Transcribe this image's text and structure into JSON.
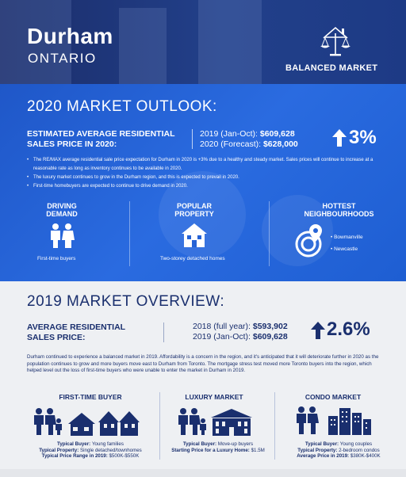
{
  "header": {
    "city": "Durham",
    "province": "ONTARIO",
    "badge": "BALANCED MARKET"
  },
  "outlook": {
    "title": "2020 MARKET OUTLOOK:",
    "label_line1": "ESTIMATED AVERAGE RESIDENTIAL",
    "label_line2": "SALES PRICE IN 2020:",
    "row1_label": "2019 (Jan-Oct): ",
    "row1_value": "$609,628",
    "row2_label": "2020 (Forecast): ",
    "row2_value": "$628,000",
    "change": "3%",
    "bullets": [
      "The RE/MAX average residential sale price expectation for Durham in 2020 is +3% due to a healthy and steady market. Sales prices will continue to increase at a reasonable rate as long as inventory continues to be available in 2020.",
      "The luxury market continues to grow in the Durham region, and this is expected to prevail in 2020.",
      "First-time homebuyers are expected to continue to drive demand in 2020."
    ],
    "driving_h1": "DRIVING",
    "driving_h2": "DEMAND",
    "driving_text": "First-time buyers",
    "popular_h1": "POPULAR",
    "popular_h2": "PROPERTY",
    "popular_text": "Two-storey detached homes",
    "hottest_h1": "HOTTEST",
    "hottest_h2": "NEIGHBOURHOODS",
    "neighbourhoods": [
      "Bowmanville",
      "Newcastle"
    ]
  },
  "overview": {
    "title": "2019 MARKET OVERVIEW:",
    "label_line1": "AVERAGE RESIDENTIAL",
    "label_line2": "SALES PRICE:",
    "row1_label": "2018 (full year): ",
    "row1_value": "$593,902",
    "row2_label": "2019 (Jan-Oct): ",
    "row2_value": "$609,628",
    "change": "2.6%",
    "paragraph": "Durham continued to experience a balanced market in 2019. Affordability is a concern in the region, and it's anticipated that it will deteriorate further in 2020 as the population continues to grow and more buyers move east to Durham from Toronto. The mortgage stress test moved more Toronto buyers into the region, which helped level out the loss of first-time buyers who were unable to enter the market in Durham in 2019."
  },
  "markets": [
    {
      "title": "FIRST-TIME BUYER",
      "l1": "Typical Buyer: ",
      "v1": "Young families",
      "l2": "Typical Property: ",
      "v2": "Single detached/townhomes",
      "l3": "Typical Price Range in 2019: ",
      "v3": "$500K-$550K"
    },
    {
      "title": "LUXURY MARKET",
      "l1": "Typical Buyer: ",
      "v1": "Move-up buyers",
      "l2": "Starting Price for a Luxury Home: ",
      "v2": "$1.5M"
    },
    {
      "title": "CONDO MARKET",
      "l1": "Typical Buyer: ",
      "v1": "Young couples",
      "l2": "Typical Property: ",
      "v2": "2-bedroom condos",
      "l3": "Average Price in 2019: ",
      "v3": "$380K-$400K"
    }
  ],
  "colors": {
    "navy": "#1a2f6e",
    "blue": "#2160d4",
    "header": "#1f3a82"
  }
}
